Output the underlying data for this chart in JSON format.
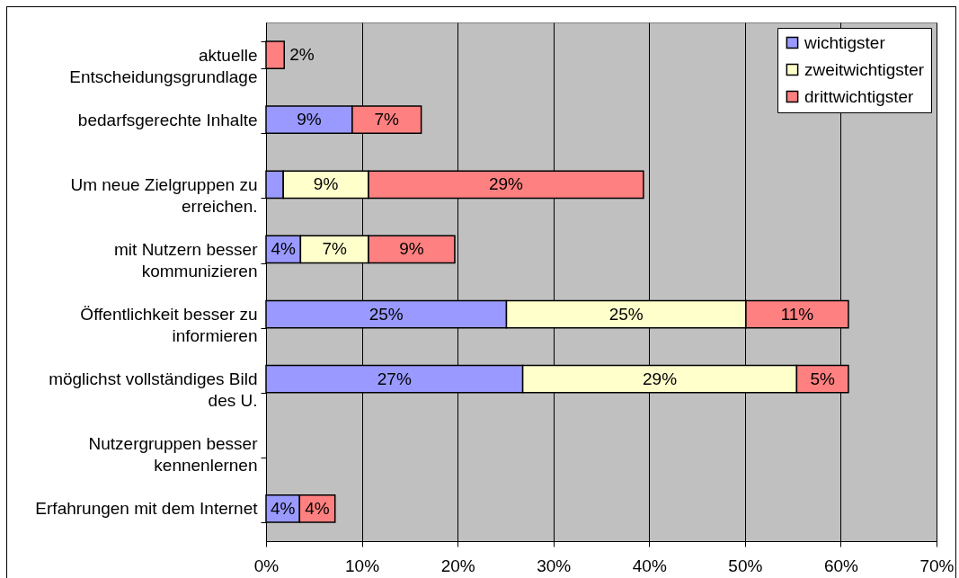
{
  "chart_data": {
    "type": "bar",
    "orientation": "horizontal",
    "stacked": true,
    "categories": [
      "aktuelle Entscheidungsgrundlage",
      "bedarfsgerechte Inhalte",
      "Um neue Zielgruppen zu erreichen.",
      "mit Nutzern besser kommunizieren",
      "Öffentlichkeit besser zu informieren",
      "möglichst vollständiges Bild des U.",
      "Nutzergruppen besser kennenlernen",
      "Erfahrungen mit dem Internet"
    ],
    "series": [
      {
        "name": "wichtigster",
        "color": "#9999ff",
        "values": [
          null,
          9.0,
          1.8,
          3.6,
          25.1,
          26.8,
          null,
          3.5
        ],
        "value_labels": [
          null,
          "9%",
          null,
          "4%",
          "25%",
          "27%",
          null,
          "4%"
        ]
      },
      {
        "name": "zweitwichtigster",
        "color": "#ffffcc",
        "values": [
          null,
          null,
          8.9,
          7.1,
          25.0,
          28.6,
          null,
          null
        ],
        "value_labels": [
          null,
          null,
          "9%",
          "7%",
          "25%",
          "29%",
          null,
          null
        ]
      },
      {
        "name": "drittwichtigster",
        "color": "#ff8080",
        "values": [
          1.9,
          7.2,
          28.7,
          9.0,
          10.7,
          5.4,
          null,
          3.7
        ],
        "value_labels": [
          "2%",
          "7%",
          "29%",
          "9%",
          "11%",
          "5%",
          null,
          "4%"
        ]
      }
    ],
    "xlim": [
      0,
      70
    ],
    "xticks": [
      {
        "value": 0,
        "label": "0%"
      },
      {
        "value": 10,
        "label": "10%"
      },
      {
        "value": 20,
        "label": "20%"
      },
      {
        "value": 30,
        "label": "30%"
      },
      {
        "value": 40,
        "label": "40%"
      },
      {
        "value": 50,
        "label": "50%"
      },
      {
        "value": 60,
        "label": "60%"
      },
      {
        "value": 70,
        "label": "70%"
      }
    ],
    "grid": "x",
    "legend": "top right"
  }
}
